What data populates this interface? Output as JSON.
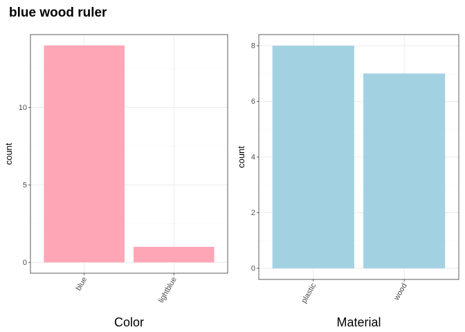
{
  "title": "blue wood ruler",
  "colors": {
    "panel_border": "#333333",
    "grid_major": "#ebebeb",
    "grid_minor": "#f5f5f5",
    "tick_text": "#4d4d4d"
  },
  "chart_data": [
    {
      "type": "bar",
      "categories": [
        "blue",
        "lightblue"
      ],
      "values": [
        14,
        1
      ],
      "xlabel": "Color",
      "ylabel": "count",
      "ylim": [
        -0.7,
        14.7
      ],
      "yticks": [
        0,
        5,
        10
      ],
      "tick_labels": [
        "0",
        "5",
        "10"
      ],
      "bar_color": "#ffa6b6",
      "grid": true
    },
    {
      "type": "bar",
      "categories": [
        "plastic",
        "wood"
      ],
      "values": [
        8,
        7
      ],
      "xlabel": "Material",
      "ylabel": "count",
      "ylim": [
        -0.4,
        8.4
      ],
      "yticks": [
        0,
        2,
        4,
        6,
        8
      ],
      "tick_labels": [
        "0",
        "2",
        "4",
        "6",
        "8"
      ],
      "bar_color": "#a2d1e2",
      "grid": true
    }
  ]
}
